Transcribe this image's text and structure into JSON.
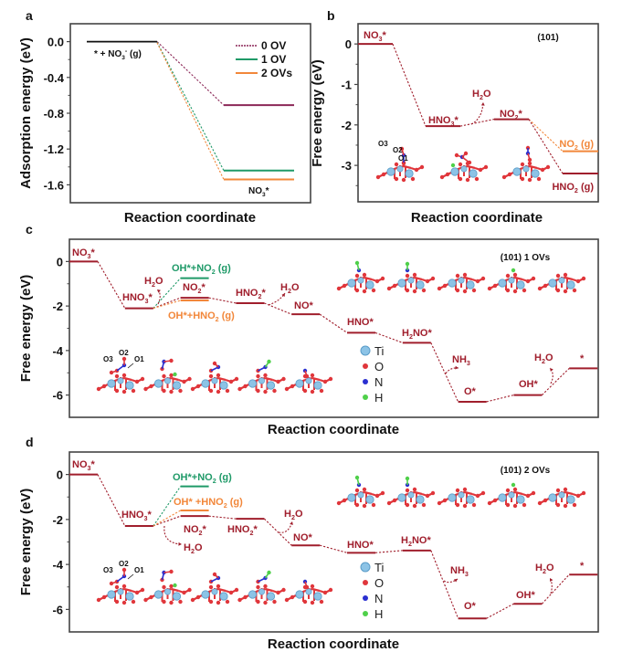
{
  "figure": {
    "panels": [
      "a",
      "b",
      "c",
      "d"
    ]
  },
  "colors": {
    "dark_red": "#a01e2c",
    "ov0": "#8b2757",
    "ov1": "#1f9a68",
    "ov2": "#f2873a",
    "black": "#111111",
    "ti": "#8cc3e6",
    "o": "#e0363b",
    "n": "#2a2fd0",
    "h": "#4fd04a"
  },
  "atom_legend": [
    {
      "symbol": "Ti",
      "color": "#8cc3e6"
    },
    {
      "symbol": "O",
      "color": "#e0363b"
    },
    {
      "symbol": "N",
      "color": "#2a2fd0"
    },
    {
      "symbol": "H",
      "color": "#4fd04a"
    }
  ],
  "chart_data": [
    {
      "panel": "a",
      "type": "line",
      "subtype": "energy-level diagram",
      "title": "",
      "xlabel": "Reaction coordinate",
      "ylabel": "Adsorption energy (eV)",
      "ylim": [
        -1.8,
        0.2
      ],
      "yticks": [
        0.0,
        -0.4,
        -0.8,
        -1.2,
        -1.6
      ],
      "ytick_labels": [
        "0.0",
        "-0.4",
        "-0.8",
        "-1.2",
        "-1.6"
      ],
      "legend_position": "top-right",
      "states": [
        "* + NO3- (g)",
        "NO3*"
      ],
      "state_labels": {
        "initial": "* + NO₃⁻ (g)",
        "final": "NO₃*"
      },
      "series": [
        {
          "name": "0 OV",
          "color": "#8b2757",
          "values": [
            0.0,
            -0.71
          ]
        },
        {
          "name": "1 OV",
          "color": "#1f9a68",
          "values": [
            0.0,
            -1.44
          ]
        },
        {
          "name": "2 OVs",
          "color": "#f2873a",
          "values": [
            0.0,
            -1.54
          ]
        }
      ]
    },
    {
      "panel": "b",
      "type": "line",
      "subtype": "free-energy diagram",
      "annotation": "(101)",
      "xlabel": "Reaction coordinate",
      "ylabel": "Free energy (eV)",
      "ylim": [
        -3.9,
        0.5
      ],
      "yticks": [
        0,
        -1,
        -2,
        -3
      ],
      "ytick_labels": [
        "0",
        "-1",
        "-2",
        "-3"
      ],
      "levels": [
        {
          "label": "NO₃*",
          "pos": 0,
          "value": 0.0,
          "color": "#a01e2c"
        },
        {
          "label": "HNO₃*",
          "pos": 1,
          "value": -2.03,
          "color": "#a01e2c"
        },
        {
          "label": "NO₂*",
          "pos": 2,
          "value": -1.86,
          "color": "#a01e2c"
        },
        {
          "label": "NO₂ (g)",
          "pos": 3,
          "value": -2.65,
          "color": "#f2873a"
        },
        {
          "label": "HNO₂ (g)",
          "pos": 3,
          "value": -3.2,
          "color": "#a01e2c"
        }
      ],
      "connections": [
        [
          0,
          1
        ],
        [
          1,
          2
        ],
        [
          2,
          3
        ],
        [
          2,
          4
        ]
      ],
      "side_products": [
        {
          "label": "H₂O",
          "after": 1
        }
      ],
      "structure_labels": [
        "O3",
        "O2",
        "O1"
      ]
    },
    {
      "panel": "c",
      "type": "line",
      "subtype": "free-energy diagram",
      "annotation": "(101) 1 OVs",
      "xlabel": "Reaction coordinate",
      "ylabel": "Free energy (eV)",
      "ylim": [
        -7,
        1
      ],
      "yticks": [
        0,
        -2,
        -4,
        -6
      ],
      "ytick_labels": [
        "0",
        "-2",
        "-4",
        "-6"
      ],
      "levels": [
        {
          "label": "NO₃*",
          "pos": 0,
          "value": 0.0,
          "color": "#a01e2c"
        },
        {
          "label": "HNO₃*",
          "pos": 1,
          "value": -2.1,
          "color": "#a01e2c"
        },
        {
          "label": "OH*+NO₂ (g)",
          "pos": 2,
          "value": -0.75,
          "color": "#1f9a68"
        },
        {
          "label": "NO₂*",
          "pos": 2,
          "value": -1.63,
          "color": "#a01e2c"
        },
        {
          "label": "OH*+HNO₂ (g)",
          "pos": 2,
          "value": -1.75,
          "color": "#f2873a"
        },
        {
          "label": "HNO₂*",
          "pos": 3,
          "value": -1.87,
          "color": "#a01e2c"
        },
        {
          "label": "NO*",
          "pos": 4,
          "value": -2.37,
          "color": "#a01e2c"
        },
        {
          "label": "HNO*",
          "pos": 5,
          "value": -3.2,
          "color": "#a01e2c"
        },
        {
          "label": "H₂NO*",
          "pos": 6,
          "value": -3.65,
          "color": "#a01e2c"
        },
        {
          "label": "O*",
          "pos": 7,
          "value": -6.3,
          "color": "#a01e2c"
        },
        {
          "label": "OH*",
          "pos": 8,
          "value": -6.0,
          "color": "#a01e2c"
        },
        {
          "label": "*",
          "pos": 9,
          "value": -4.8,
          "color": "#a01e2c"
        }
      ],
      "side_products": [
        {
          "label": "H₂O",
          "after": 1
        },
        {
          "label": "H₂O",
          "after": 3
        },
        {
          "label": "NH₃",
          "after": 6
        },
        {
          "label": "H₂O",
          "after": 8
        }
      ],
      "structure_labels": [
        "O3",
        "O2",
        "O1"
      ]
    },
    {
      "panel": "d",
      "type": "line",
      "subtype": "free-energy diagram",
      "annotation": "(101) 2 OVs",
      "xlabel": "Reaction coordinate",
      "ylabel": "Free energy (eV)",
      "ylim": [
        -7,
        1
      ],
      "yticks": [
        0,
        -2,
        -4,
        -6
      ],
      "ytick_labels": [
        "0",
        "-2",
        "-4",
        "-6"
      ],
      "levels": [
        {
          "label": "NO₃*",
          "pos": 0,
          "value": 0.0,
          "color": "#a01e2c"
        },
        {
          "label": "HNO₃*",
          "pos": 1,
          "value": -2.29,
          "color": "#a01e2c"
        },
        {
          "label": "OH*+NO₂ (g)",
          "pos": 2,
          "value": -0.53,
          "color": "#1f9a68"
        },
        {
          "label": "OH* +HNO₂ (g)",
          "pos": 2,
          "value": -1.6,
          "color": "#f2873a"
        },
        {
          "label": "NO₂*",
          "pos": 2,
          "value": -1.85,
          "color": "#a01e2c"
        },
        {
          "label": "HNO₂*",
          "pos": 3,
          "value": -1.97,
          "color": "#a01e2c"
        },
        {
          "label": "NO*",
          "pos": 4,
          "value": -3.15,
          "color": "#a01e2c"
        },
        {
          "label": "HNO*",
          "pos": 5,
          "value": -3.48,
          "color": "#a01e2c"
        },
        {
          "label": "H₂NO*",
          "pos": 6,
          "value": -3.38,
          "color": "#a01e2c"
        },
        {
          "label": "O*",
          "pos": 7,
          "value": -6.4,
          "color": "#a01e2c"
        },
        {
          "label": "OH*",
          "pos": 8,
          "value": -5.75,
          "color": "#a01e2c"
        },
        {
          "label": "*",
          "pos": 9,
          "value": -4.45,
          "color": "#a01e2c"
        }
      ],
      "side_products": [
        {
          "label": "H₂O",
          "after": 1
        },
        {
          "label": "H₂O",
          "after": 3
        },
        {
          "label": "NH₃",
          "after": 6
        },
        {
          "label": "H₂O",
          "after": 8
        }
      ],
      "structure_labels": [
        "O3",
        "O2",
        "O1"
      ]
    }
  ]
}
